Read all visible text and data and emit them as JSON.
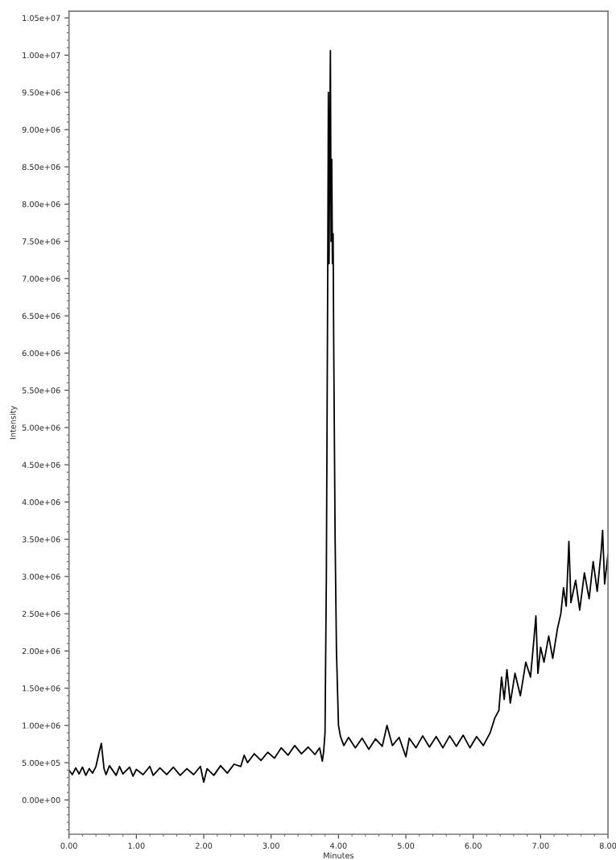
{
  "chart_data": {
    "type": "line",
    "xlabel": "Minutes",
    "ylabel": "Intensity",
    "x": [
      0.0,
      0.05,
      0.1,
      0.15,
      0.2,
      0.25,
      0.3,
      0.35,
      0.4,
      0.45,
      0.48,
      0.52,
      0.55,
      0.6,
      0.7,
      0.75,
      0.8,
      0.9,
      0.95,
      1.0,
      1.1,
      1.2,
      1.25,
      1.35,
      1.45,
      1.55,
      1.65,
      1.75,
      1.85,
      1.95,
      2.0,
      2.05,
      2.15,
      2.25,
      2.35,
      2.45,
      2.55,
      2.6,
      2.65,
      2.75,
      2.85,
      2.95,
      3.05,
      3.15,
      3.25,
      3.35,
      3.45,
      3.55,
      3.65,
      3.72,
      3.76,
      3.78,
      3.8,
      3.82,
      3.84,
      3.85,
      3.86,
      3.87,
      3.88,
      3.89,
      3.9,
      3.91,
      3.92,
      3.93,
      3.95,
      3.97,
      4.0,
      4.03,
      4.08,
      4.15,
      4.25,
      4.35,
      4.45,
      4.55,
      4.65,
      4.72,
      4.8,
      4.9,
      5.0,
      5.05,
      5.15,
      5.25,
      5.35,
      5.45,
      5.55,
      5.65,
      5.75,
      5.85,
      5.95,
      6.05,
      6.15,
      6.25,
      6.32,
      6.38,
      6.42,
      6.46,
      6.5,
      6.55,
      6.62,
      6.7,
      6.78,
      6.85,
      6.9,
      6.93,
      6.96,
      7.0,
      7.05,
      7.12,
      7.18,
      7.25,
      7.3,
      7.34,
      7.38,
      7.42,
      7.45,
      7.52,
      7.58,
      7.65,
      7.72,
      7.78,
      7.84,
      7.9,
      7.92,
      7.95,
      8.0
    ],
    "series": [
      {
        "color": "#000000",
        "values": [
          400000,
          340000,
          430000,
          350000,
          440000,
          330000,
          420000,
          360000,
          450000,
          650000,
          760000,
          420000,
          340000,
          460000,
          330000,
          450000,
          350000,
          440000,
          320000,
          410000,
          340000,
          450000,
          330000,
          430000,
          340000,
          440000,
          330000,
          420000,
          340000,
          450000,
          240000,
          420000,
          330000,
          460000,
          360000,
          480000,
          450000,
          600000,
          500000,
          620000,
          530000,
          640000,
          560000,
          700000,
          600000,
          730000,
          620000,
          710000,
          610000,
          700000,
          520000,
          650000,
          900000,
          3000000,
          7000000,
          9500000,
          7200000,
          8800000,
          10060000,
          7500000,
          8600000,
          7200000,
          7600000,
          6000000,
          3500000,
          2000000,
          1000000,
          850000,
          730000,
          840000,
          700000,
          830000,
          680000,
          820000,
          720000,
          1000000,
          730000,
          840000,
          580000,
          830000,
          700000,
          860000,
          710000,
          850000,
          700000,
          860000,
          720000,
          870000,
          700000,
          850000,
          730000,
          900000,
          1100000,
          1200000,
          1650000,
          1350000,
          1750000,
          1300000,
          1700000,
          1400000,
          1850000,
          1650000,
          2150000,
          2470000,
          1700000,
          2050000,
          1850000,
          2200000,
          1900000,
          2300000,
          2500000,
          2850000,
          2600000,
          3470000,
          2650000,
          2950000,
          2550000,
          3050000,
          2700000,
          3200000,
          2800000,
          3350000,
          3620000,
          2900000,
          3300000
        ]
      }
    ],
    "xlim": [
      0,
      8
    ],
    "ylim": [
      -460000,
      10590000
    ],
    "xticks": [
      {
        "value": 0,
        "label": "0.00"
      },
      {
        "value": 1,
        "label": "1.00"
      },
      {
        "value": 2,
        "label": "2.00"
      },
      {
        "value": 3,
        "label": "3.00"
      },
      {
        "value": 4,
        "label": "4.00"
      },
      {
        "value": 5,
        "label": "5.00"
      },
      {
        "value": 6,
        "label": "6.00"
      },
      {
        "value": 7,
        "label": "7.00"
      },
      {
        "value": 8,
        "label": "8.00"
      }
    ],
    "yticks": [
      {
        "value": 0,
        "label": "0.00e+00"
      },
      {
        "value": 500000,
        "label": "5.00e+05"
      },
      {
        "value": 1000000,
        "label": "1.00e+06"
      },
      {
        "value": 1500000,
        "label": "1.50e+06"
      },
      {
        "value": 2000000,
        "label": "2.00e+06"
      },
      {
        "value": 2500000,
        "label": "2.50e+06"
      },
      {
        "value": 3000000,
        "label": "3.00e+06"
      },
      {
        "value": 3500000,
        "label": "3.50e+06"
      },
      {
        "value": 4000000,
        "label": "4.00e+06"
      },
      {
        "value": 4500000,
        "label": "4.50e+06"
      },
      {
        "value": 5000000,
        "label": "5.00e+06"
      },
      {
        "value": 5500000,
        "label": "5.50e+06"
      },
      {
        "value": 6000000,
        "label": "6.00e+06"
      },
      {
        "value": 6500000,
        "label": "6.50e+06"
      },
      {
        "value": 7000000,
        "label": "7.00e+06"
      },
      {
        "value": 7500000,
        "label": "7.50e+06"
      },
      {
        "value": 8000000,
        "label": "8.00e+06"
      },
      {
        "value": 8500000,
        "label": "8.50e+06"
      },
      {
        "value": 9000000,
        "label": "9.00e+06"
      },
      {
        "value": 9500000,
        "label": "9.50e+06"
      },
      {
        "value": 10000000,
        "label": "1.00e+07"
      },
      {
        "value": 10500000,
        "label": "1.05e+07"
      }
    ],
    "grid": false,
    "legend": false,
    "marker": "none",
    "line_style": "solid"
  }
}
